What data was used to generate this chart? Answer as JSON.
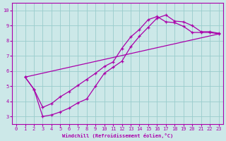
{
  "xlabel": "Windchill (Refroidissement éolien,°C)",
  "bg_color": "#cce8e8",
  "line_color": "#aa00aa",
  "grid_color": "#99cccc",
  "xlim": [
    -0.5,
    23.5
  ],
  "ylim": [
    2.5,
    10.5
  ],
  "xticks": [
    0,
    1,
    2,
    3,
    4,
    5,
    6,
    7,
    8,
    9,
    10,
    11,
    12,
    13,
    14,
    15,
    16,
    17,
    18,
    19,
    20,
    21,
    22,
    23
  ],
  "yticks": [
    3,
    4,
    5,
    6,
    7,
    8,
    9,
    10
  ],
  "curve1_x": [
    1,
    2,
    3,
    4,
    5,
    6,
    7,
    8,
    9,
    10,
    11,
    12,
    13,
    14,
    15,
    16,
    17,
    18,
    19,
    20,
    21,
    22,
    23
  ],
  "curve1_y": [
    5.6,
    4.8,
    3.0,
    3.1,
    3.3,
    3.55,
    3.9,
    4.15,
    5.0,
    5.85,
    6.25,
    6.65,
    7.6,
    8.3,
    8.9,
    9.5,
    9.7,
    9.3,
    9.25,
    9.0,
    8.6,
    8.6,
    8.5
  ],
  "curve2_x": [
    1,
    2,
    3,
    4,
    5,
    6,
    7,
    8,
    9,
    10,
    11,
    12,
    13,
    14,
    15,
    16,
    17,
    18,
    19,
    20,
    21,
    22,
    23
  ],
  "curve2_y": [
    5.6,
    4.8,
    3.6,
    3.85,
    4.3,
    4.65,
    5.05,
    5.45,
    5.85,
    6.3,
    6.6,
    7.5,
    8.25,
    8.75,
    9.4,
    9.6,
    9.25,
    9.2,
    8.95,
    8.55,
    8.55,
    8.55,
    8.45
  ],
  "curve3_x": [
    1,
    23
  ],
  "curve3_y": [
    5.6,
    8.45
  ],
  "tick_fontsize": 5,
  "xlabel_fontsize": 5
}
